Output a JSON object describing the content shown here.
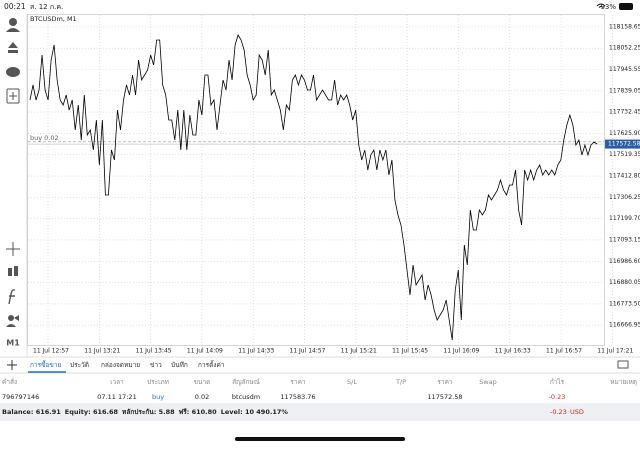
{
  "status_bar": {
    "time": "00:21",
    "date": "ส. 12 ก.ค.",
    "battery": "93%"
  },
  "toolbar": {
    "timeframe": "M1"
  },
  "chart_data": {
    "type": "line",
    "title": "BTCUSDm, M1",
    "color": "#000000",
    "grid": true,
    "values": [
      117793,
      117868,
      117793,
      117843,
      118018,
      117843,
      117793,
      117993,
      118068,
      117893,
      117793,
      117768,
      117818,
      117743,
      117793,
      117643,
      117768,
      117593,
      117818,
      117618,
      117643,
      117543,
      117693,
      117468,
      117693,
      117318,
      117318,
      117543,
      117493,
      117743,
      117643,
      117793,
      117868,
      117818,
      117918,
      117818,
      117993,
      117893,
      117918,
      117943,
      118018,
      117968,
      118093,
      118093,
      117868,
      117818,
      117693,
      117693,
      117593,
      117743,
      117543,
      117743,
      117543,
      117718,
      117618,
      117618,
      117793,
      117718,
      117918,
      117918,
      117768,
      117793,
      117643,
      117768,
      117893,
      117843,
      117993,
      117893,
      118068,
      118118,
      118093,
      118043,
      117918,
      117868,
      117793,
      117818,
      118018,
      117993,
      117918,
      118043,
      117818,
      117843,
      117793,
      117743,
      117643,
      117768,
      117743,
      117893,
      117918,
      117868,
      117918,
      117893,
      117843,
      117843,
      117918,
      117793,
      117818,
      117843,
      117818,
      117793,
      117793,
      117893,
      117768,
      117818,
      117793,
      117818,
      117768,
      117693,
      117743,
      117568,
      117493,
      117543,
      117443,
      117518,
      117543,
      117443,
      117543,
      117493,
      117543,
      117418,
      117493,
      117293,
      117218,
      117168,
      117068,
      116943,
      116818,
      116968,
      116868,
      116893,
      116918,
      116793,
      116868,
      116818,
      116743,
      116693,
      116718,
      116743,
      116793,
      116693,
      116593,
      116843,
      116943,
      116693,
      117068,
      116968,
      117243,
      117143,
      117143,
      117243,
      117218,
      117243,
      117318,
      117293,
      117318,
      117343,
      117393,
      117343,
      117318,
      117368,
      117368,
      117443,
      117243,
      117168,
      117443,
      117393,
      117443,
      117393,
      117443,
      117468,
      117418,
      117443,
      117418,
      117443,
      117418,
      117468,
      117493,
      117593,
      117668,
      117718,
      117668,
      117568,
      117593,
      117518,
      117568,
      117518,
      117568,
      117583,
      117573
    ],
    "ylim": [
      116568,
      118218
    ],
    "yticks": [
      118158.65,
      118052.25,
      117945.55,
      117839.05,
      117732.45,
      {
        "value": 117625.9,
        "label": "117625.90"
      },
      117519.35,
      {
        "value": 117412.8,
        "label": "117412.80"
      },
      117306.25,
      {
        "value": 117199.7,
        "label": "117199.70"
      },
      117093.15,
      {
        "value": 116986.6,
        "label": "116986.60"
      },
      116880.05,
      {
        "value": 116773.5,
        "label": "116773.50"
      },
      116666.95
    ],
    "xtick_labels": [
      "11 Jul 12:57",
      "11 Jul 13:21",
      "11 Jul 13:45",
      "11 Jul 14:09",
      "11 Jul 14:33",
      "11 Jul 14:57",
      "11 Jul 15:21",
      "11 Jul 15:45",
      "11 Jul 16:09",
      "11 Jul 16:33",
      "11 Jul 16:57",
      "11 Jul 17:21"
    ],
    "current_price": 117572.58,
    "order_label": "buy 0.02"
  },
  "tabs": [
    "การซื้อขาย",
    "ประวัติ",
    "กล่องจดหมาย",
    "ข่าว",
    "บันทึก",
    "การตั้งค่า"
  ],
  "table": {
    "headers": [
      "คำสั่ง",
      "เวลา",
      "ประเภท",
      "ขนาด",
      "สัญลักษณ์",
      "ราคา",
      "S/L",
      "T/P",
      "ราคา",
      "Swap",
      "กำไร",
      "หมายเหตุ"
    ],
    "rows": [
      [
        "796797146",
        "07.11 17:21",
        "buy",
        0.02,
        "btcusdm",
        117583.76,
        null,
        null,
        117572.58,
        null,
        -0.23,
        null
      ]
    ]
  },
  "account": {
    "summary": [
      "Balance: 616.91",
      "Equity: 616.68",
      "หลักประกัน: 5.88",
      "ฟรี: 610.80",
      "Level: 10 490.17%"
    ],
    "profit": -0.23,
    "currency": "USD"
  }
}
